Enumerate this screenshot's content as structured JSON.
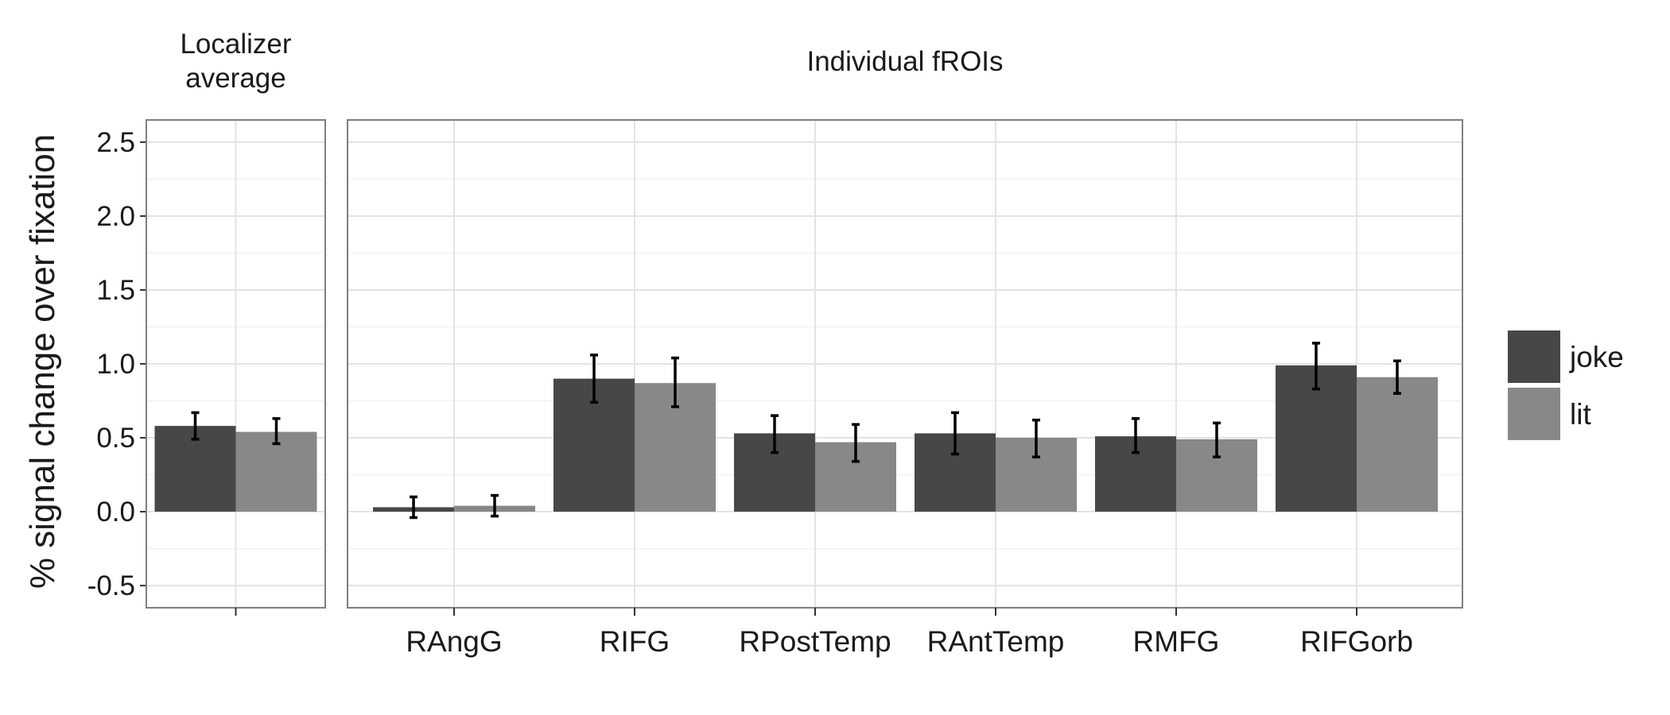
{
  "chart_data": {
    "type": "bar",
    "ylabel": "% signal change over fixation",
    "ylim": [
      -0.65,
      2.65
    ],
    "yticks": [
      -0.5,
      0.0,
      0.5,
      1.0,
      1.5,
      2.0,
      2.5
    ],
    "ytick_labels": [
      "-0.5",
      "0.0",
      "0.5",
      "1.0",
      "1.5",
      "2.0",
      "2.5"
    ],
    "grid": true,
    "legend": {
      "placement": "right",
      "entries": [
        "joke",
        "lit"
      ]
    },
    "colors": {
      "joke": "#474747",
      "lit": "#888888"
    },
    "series_names": [
      "joke",
      "lit"
    ],
    "panels": [
      {
        "title_lines": [
          "Localizer",
          "average"
        ],
        "categories": [
          ""
        ],
        "series": [
          {
            "name": "joke",
            "values": [
              0.58
            ],
            "err_low": [
              0.49
            ],
            "err_high": [
              0.67
            ]
          },
          {
            "name": "lit",
            "values": [
              0.54
            ],
            "err_low": [
              0.46
            ],
            "err_high": [
              0.63
            ]
          }
        ]
      },
      {
        "title_lines": [
          "Individual fROIs"
        ],
        "categories": [
          "RAngG",
          "RIFG",
          "RPostTemp",
          "RAntTemp",
          "RMFG",
          "RIFGorb"
        ],
        "series": [
          {
            "name": "joke",
            "values": [
              0.03,
              0.9,
              0.53,
              0.53,
              0.51,
              0.99
            ],
            "err_low": [
              -0.04,
              0.74,
              0.4,
              0.39,
              0.4,
              0.83
            ],
            "err_high": [
              0.1,
              1.06,
              0.65,
              0.67,
              0.63,
              1.14
            ]
          },
          {
            "name": "lit",
            "values": [
              0.04,
              0.87,
              0.47,
              0.5,
              0.49,
              0.91
            ],
            "err_low": [
              -0.03,
              0.71,
              0.34,
              0.37,
              0.37,
              0.8
            ],
            "err_high": [
              0.11,
              1.04,
              0.59,
              0.62,
              0.6,
              1.02
            ]
          }
        ]
      }
    ]
  }
}
